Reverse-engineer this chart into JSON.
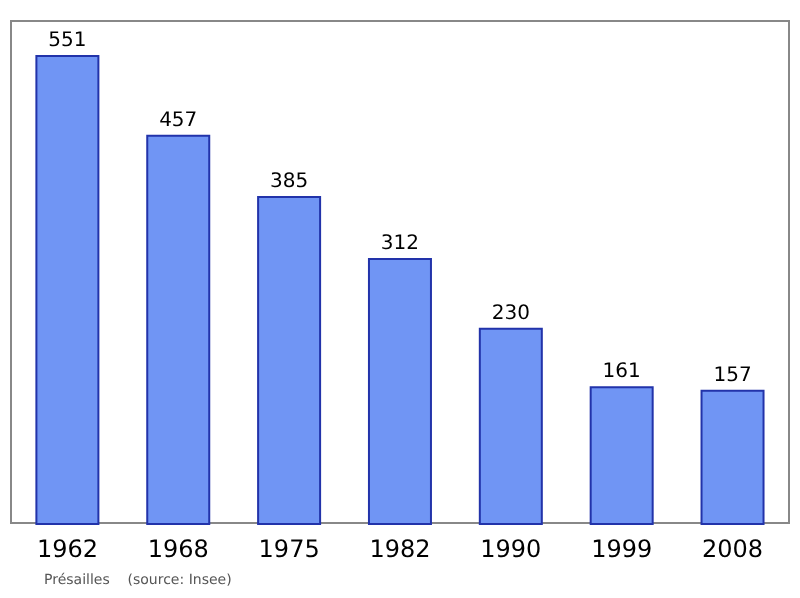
{
  "chart_data": {
    "type": "bar",
    "categories": [
      "1962",
      "1968",
      "1975",
      "1982",
      "1990",
      "1999",
      "2008"
    ],
    "values": [
      551,
      457,
      385,
      312,
      230,
      161,
      157
    ],
    "color": "#7095f4",
    "data_labels": true,
    "grid": false,
    "annotations": [
      "Présailles    (source: Insee)"
    ]
  }
}
